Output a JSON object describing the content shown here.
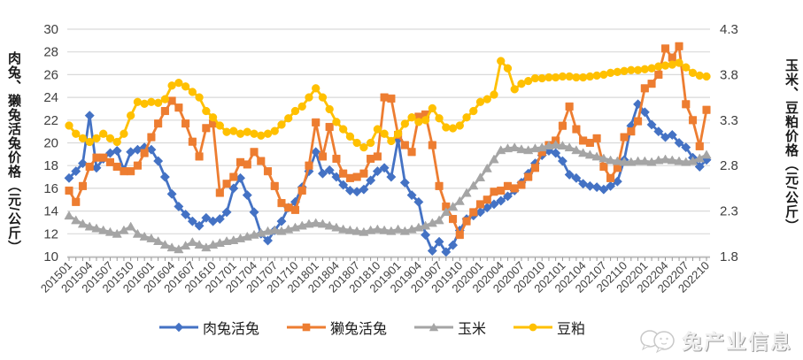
{
  "chart_data": {
    "type": "line",
    "title": "",
    "grid": "horizontal",
    "x_tick_labels": [
      "201501",
      "201504",
      "201507",
      "201510",
      "201601",
      "201604",
      "201607",
      "201610",
      "201701",
      "201704",
      "201707",
      "201710",
      "201801",
      "201804",
      "201807",
      "201810",
      "201901",
      "201904",
      "201907",
      "201910",
      "202001",
      "202004",
      "202007",
      "202010",
      "202101",
      "202104",
      "202107",
      "202110",
      "202201",
      "202204",
      "202207",
      "202210"
    ],
    "x_label_every_n_months": 3,
    "left_axis": {
      "title": "肉兔、獭兔活兔价格（元/公斤）",
      "ticks": [
        "30",
        "28",
        "26",
        "24",
        "22",
        "20",
        "18",
        "16",
        "14",
        "12",
        "10"
      ],
      "min": 10,
      "max": 30
    },
    "right_axis": {
      "title": "玉米、豆粕价格（元/公斤）",
      "ticks": [
        "4.3",
        "3.8",
        "3.3",
        "2.8",
        "2.3",
        "1.8"
      ],
      "min": 1.8,
      "max": 4.3
    },
    "legend_position": "bottom",
    "series": [
      {
        "name": "肉兔活兔",
        "axis": "left",
        "color": "#4472C4",
        "marker": "diamond",
        "values": [
          16.9,
          17.5,
          18.2,
          22.4,
          17.8,
          18.6,
          19.1,
          19.3,
          17.6,
          19.2,
          19.4,
          19.6,
          19.4,
          18.4,
          17.0,
          15.5,
          14.4,
          13.7,
          13.1,
          12.7,
          13.4,
          13.1,
          13.3,
          13.9,
          16.0,
          16.9,
          15.4,
          13.9,
          12.0,
          11.4,
          12.3,
          13.1,
          14.3,
          14.8,
          16.1,
          17.5,
          19.2,
          17.3,
          17.6,
          17.0,
          16.3,
          15.8,
          15.7,
          15.9,
          16.7,
          17.5,
          17.8,
          17.0,
          20.3,
          16.5,
          15.4,
          14.8,
          11.9,
          10.5,
          11.3,
          10.4,
          11.0,
          12.3,
          13.3,
          13.6,
          13.9,
          14.3,
          14.6,
          14.9,
          15.3,
          15.8,
          16.5,
          17.3,
          18.2,
          18.9,
          19.3,
          19.1,
          18.4,
          17.2,
          16.9,
          16.4,
          16.2,
          16.1,
          15.9,
          16.2,
          16.6,
          18.5,
          21.5,
          23.4,
          22.7,
          21.6,
          21.0,
          20.5,
          20.7,
          20.0,
          19.6,
          18.7,
          17.9,
          18.5
        ]
      },
      {
        "name": "獭兔活兔",
        "axis": "left",
        "color": "#ED7D31",
        "marker": "square",
        "values": [
          15.8,
          14.8,
          16.2,
          17.9,
          18.7,
          18.7,
          18.3,
          17.9,
          17.5,
          17.5,
          18.0,
          19.1,
          20.5,
          21.7,
          22.8,
          23.7,
          23.1,
          21.7,
          20.1,
          18.8,
          21.3,
          21.7,
          15.6,
          16.4,
          17.0,
          18.3,
          18.1,
          19.2,
          18.4,
          17.5,
          16.2,
          14.7,
          14.3,
          14.1,
          15.8,
          18.0,
          21.8,
          18.8,
          21.4,
          18.6,
          17.3,
          16.9,
          17.0,
          17.3,
          18.6,
          18.8,
          24.0,
          23.9,
          20.7,
          19.8,
          19.2,
          22.3,
          22.5,
          19.8,
          16.2,
          14.4,
          13.3,
          11.9,
          13.1,
          13.9,
          14.6,
          15.0,
          15.7,
          15.8,
          16.2,
          16.0,
          16.3,
          17.0,
          17.8,
          19.2,
          19.8,
          20.2,
          21.5,
          23.2,
          21.2,
          20.2,
          20.0,
          20.4,
          17.9,
          16.9,
          17.8,
          20.5,
          21.0,
          21.9,
          24.8,
          25.2,
          26.0,
          28.3,
          27.5,
          28.5,
          23.4,
          22.0,
          19.7,
          22.9
        ]
      },
      {
        "name": "玉米",
        "axis": "right",
        "color": "#A5A5A5",
        "marker": "triangle",
        "values": [
          2.25,
          2.2,
          2.16,
          2.13,
          2.11,
          2.09,
          2.07,
          2.05,
          2.09,
          2.13,
          2.05,
          2.02,
          2.0,
          1.97,
          1.93,
          1.9,
          1.88,
          1.92,
          1.96,
          1.93,
          1.9,
          1.93,
          1.95,
          1.97,
          1.98,
          2.0,
          2.02,
          2.04,
          2.06,
          2.08,
          2.09,
          2.08,
          2.1,
          2.12,
          2.14,
          2.16,
          2.17,
          2.16,
          2.14,
          2.12,
          2.1,
          2.09,
          2.08,
          2.07,
          2.09,
          2.1,
          2.09,
          2.08,
          2.1,
          2.08,
          2.1,
          2.12,
          2.14,
          2.17,
          2.2,
          2.29,
          2.35,
          2.41,
          2.5,
          2.58,
          2.67,
          2.77,
          2.87,
          2.97,
          2.99,
          3.0,
          2.98,
          2.97,
          2.99,
          3.0,
          3.02,
          3.03,
          3.02,
          3.0,
          2.97,
          2.94,
          2.92,
          2.9,
          2.88,
          2.86,
          2.85,
          2.84,
          2.84,
          2.85,
          2.85,
          2.84,
          2.86,
          2.87,
          2.86,
          2.85,
          2.84,
          2.85,
          2.88,
          2.92
        ]
      },
      {
        "name": "豆粕",
        "axis": "right",
        "color": "#FFC000",
        "marker": "circle",
        "values": [
          3.24,
          3.15,
          3.1,
          3.06,
          3.1,
          3.15,
          3.1,
          3.06,
          3.15,
          3.35,
          3.5,
          3.48,
          3.5,
          3.49,
          3.53,
          3.68,
          3.71,
          3.67,
          3.61,
          3.55,
          3.4,
          3.33,
          3.24,
          3.17,
          3.18,
          3.15,
          3.17,
          3.15,
          3.13,
          3.15,
          3.18,
          3.25,
          3.32,
          3.4,
          3.45,
          3.55,
          3.65,
          3.55,
          3.42,
          3.28,
          3.2,
          3.12,
          3.05,
          3.0,
          3.05,
          3.2,
          3.15,
          3.07,
          3.15,
          3.26,
          3.33,
          3.28,
          3.3,
          3.43,
          3.32,
          3.22,
          3.21,
          3.24,
          3.33,
          3.4,
          3.5,
          3.53,
          3.58,
          3.95,
          3.87,
          3.64,
          3.7,
          3.73,
          3.76,
          3.76,
          3.77,
          3.77,
          3.78,
          3.78,
          3.77,
          3.77,
          3.78,
          3.79,
          3.8,
          3.82,
          3.83,
          3.84,
          3.85,
          3.85,
          3.86,
          3.87,
          3.89,
          3.9,
          3.91,
          3.93,
          3.88,
          3.82,
          3.79,
          3.78
        ]
      }
    ]
  },
  "watermark": {
    "text": "兔产业信息"
  },
  "colors": {
    "gridline": "#D9D9D9",
    "axis_line": "#A6A6A6",
    "tick_text": "#404040"
  }
}
